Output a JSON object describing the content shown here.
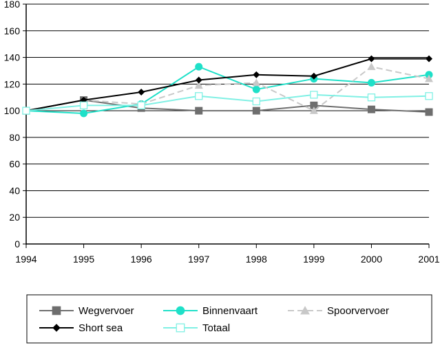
{
  "chart_data": {
    "type": "line",
    "title": "",
    "xlabel": "",
    "ylabel": "",
    "x": [
      1994,
      1995,
      1996,
      1997,
      1998,
      1999,
      2000,
      2001
    ],
    "x_tick_labels": [
      "1994",
      "1995",
      "1996",
      "1997",
      "1998",
      "1999",
      "2000",
      "2001"
    ],
    "ylim": [
      0,
      180
    ],
    "y_ticks": [
      0,
      20,
      40,
      60,
      80,
      100,
      120,
      140,
      160,
      180
    ],
    "y_tick_labels": [
      "0",
      "20",
      "40",
      "60",
      "80",
      "100",
      "120",
      "140",
      "160",
      "180"
    ],
    "grid": "horizontal",
    "legend_position": "bottom",
    "series": [
      {
        "name": "Wegvervoer",
        "color": "#6e6e6e",
        "marker": "square",
        "dashed": false,
        "values": [
          100,
          108,
          102,
          100,
          100,
          104,
          101,
          99
        ]
      },
      {
        "name": "Binnenvaart",
        "color": "#1ee0c8",
        "marker": "circle",
        "dashed": false,
        "values": [
          100,
          98,
          105,
          133,
          116,
          124,
          121,
          127
        ]
      },
      {
        "name": "Spoorvervoer",
        "color": "#c8c8c8",
        "marker": "triangle",
        "dashed": true,
        "values": [
          100,
          108,
          105,
          119,
          121,
          100,
          133,
          124
        ]
      },
      {
        "name": "Short sea",
        "color": "#000000",
        "marker": "diamond",
        "dashed": false,
        "values": [
          100,
          108,
          114,
          123,
          127,
          126,
          139,
          139
        ]
      },
      {
        "name": "Totaal",
        "color": "#7ff0e4",
        "marker": "square-open",
        "dashed": false,
        "values": [
          100,
          104,
          104,
          111,
          107,
          112,
          110,
          111
        ]
      }
    ]
  }
}
